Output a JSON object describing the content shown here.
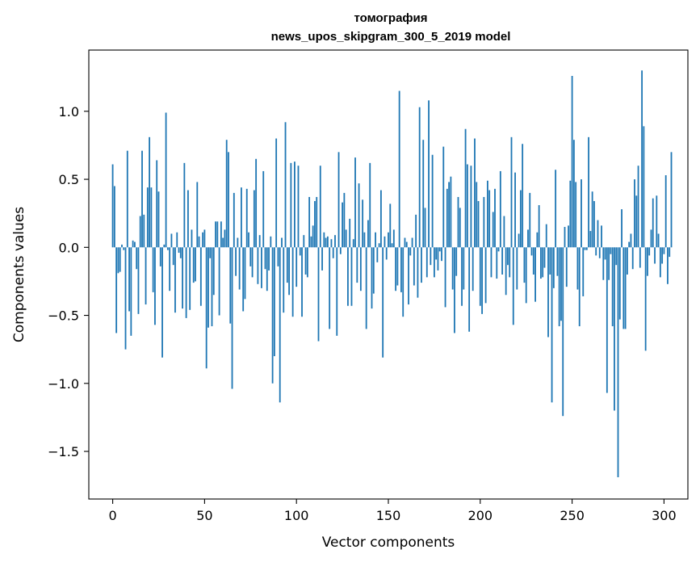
{
  "chart_data": {
    "type": "bar",
    "title_line1": "томография",
    "title_line2": "news_upos_skipgram_300_5_2019 model",
    "xlabel": "Vector components",
    "ylabel": "Components values",
    "xlim": [
      -13,
      313
    ],
    "ylim": [
      -1.85,
      1.45
    ],
    "xticks": [
      0,
      50,
      100,
      150,
      200,
      250,
      300
    ],
    "yticks": [
      1.0,
      0.5,
      0.0,
      -0.5,
      -1.0,
      -1.5
    ],
    "ytick_labels": [
      "1.0",
      "0.5",
      "0.0",
      "−0.5",
      "−1.0",
      "−1.5"
    ],
    "grid": false,
    "bar_color": "#1f77b4",
    "values": [
      0.61,
      0.45,
      -0.63,
      -0.19,
      -0.18,
      0.02,
      -0.02,
      -0.75,
      0.71,
      -0.47,
      -0.65,
      0.05,
      0.04,
      -0.16,
      -0.49,
      0.23,
      0.71,
      0.24,
      -0.42,
      0.44,
      0.81,
      0.44,
      -0.33,
      -0.57,
      0.64,
      0.41,
      -0.14,
      -0.81,
      0.02,
      0.99,
      -0.02,
      -0.32,
      0.1,
      -0.13,
      -0.48,
      0.11,
      -0.04,
      -0.08,
      -0.45,
      0.62,
      -0.52,
      0.42,
      -0.46,
      0.13,
      -0.26,
      -0.25,
      0.48,
      0.08,
      -0.43,
      0.11,
      0.13,
      -0.89,
      -0.59,
      -0.08,
      -0.58,
      -0.35,
      0.19,
      0.19,
      -0.5,
      0.19,
      0.07,
      0.13,
      0.79,
      0.7,
      -0.56,
      -1.04,
      0.4,
      -0.21,
      0.07,
      -0.31,
      0.44,
      -0.47,
      -0.38,
      0.43,
      0.11,
      -0.14,
      -0.22,
      0.42,
      0.65,
      -0.27,
      0.09,
      -0.3,
      0.56,
      -0.16,
      -0.32,
      -0.17,
      0.08,
      -1.0,
      -0.8,
      0.8,
      -0.14,
      -1.14,
      0.07,
      -0.48,
      0.92,
      -0.26,
      -0.35,
      0.62,
      -0.51,
      0.63,
      -0.29,
      0.6,
      -0.06,
      -0.51,
      0.09,
      -0.2,
      -0.22,
      0.37,
      0.08,
      0.16,
      0.34,
      0.37,
      -0.69,
      0.6,
      -0.17,
      0.11,
      0.07,
      0.08,
      -0.6,
      0.06,
      -0.08,
      0.09,
      -0.65,
      0.7,
      -0.05,
      0.33,
      0.4,
      0.13,
      -0.43,
      0.21,
      -0.43,
      0.06,
      0.66,
      -0.26,
      0.47,
      -0.32,
      0.35,
      0.11,
      -0.6,
      0.2,
      0.62,
      -0.45,
      -0.34,
      0.11,
      -0.11,
      0.03,
      0.42,
      -0.81,
      0.08,
      -0.09,
      0.11,
      0.32,
      0.03,
      0.13,
      -0.32,
      -0.28,
      1.15,
      -0.33,
      -0.51,
      0.07,
      0.04,
      -0.42,
      -0.06,
      0.07,
      -0.28,
      0.24,
      -0.37,
      1.03,
      -0.26,
      0.79,
      0.29,
      -0.22,
      1.08,
      -0.13,
      0.68,
      -0.22,
      -0.09,
      -0.17,
      -0.03,
      -0.1,
      0.74,
      -0.44,
      0.43,
      0.48,
      0.52,
      -0.31,
      -0.63,
      -0.21,
      0.37,
      0.29,
      -0.43,
      -0.31,
      0.87,
      0.61,
      -0.62,
      0.6,
      -0.32,
      0.8,
      0.48,
      0.34,
      -0.43,
      -0.49,
      0.37,
      -0.41,
      0.49,
      0.42,
      -0.22,
      0.26,
      0.43,
      -0.23,
      -0.03,
      0.56,
      -0.2,
      0.23,
      -0.35,
      -0.13,
      -0.22,
      0.81,
      -0.57,
      0.55,
      -0.31,
      0.1,
      0.42,
      0.76,
      -0.26,
      -0.41,
      0.13,
      0.4,
      -0.06,
      -0.2,
      -0.4,
      0.11,
      0.31,
      -0.23,
      -0.22,
      -0.15,
      0.17,
      -0.66,
      -0.2,
      -1.14,
      -0.3,
      0.57,
      -0.21,
      -0.58,
      -0.54,
      -1.24,
      0.15,
      -0.29,
      0.16,
      0.49,
      1.26,
      0.79,
      0.48,
      -0.31,
      -0.58,
      0.5,
      -0.36,
      -0.02,
      -0.02,
      0.81,
      0.12,
      0.41,
      0.34,
      -0.06,
      0.2,
      -0.08,
      0.16,
      -0.24,
      -0.09,
      -1.07,
      -0.24,
      -0.05,
      -0.58,
      -1.2,
      -0.13,
      -1.69,
      -0.53,
      0.28,
      -0.6,
      -0.6,
      -0.2,
      0.04,
      0.1,
      -0.16,
      0.5,
      0.38,
      0.6,
      -0.15,
      1.3,
      0.89,
      -0.76,
      -0.21,
      -0.06,
      0.13,
      0.36,
      -0.12,
      0.38,
      0.1,
      -0.22,
      -0.12,
      -0.05,
      0.53,
      -0.27,
      -0.07,
      0.7
    ]
  }
}
